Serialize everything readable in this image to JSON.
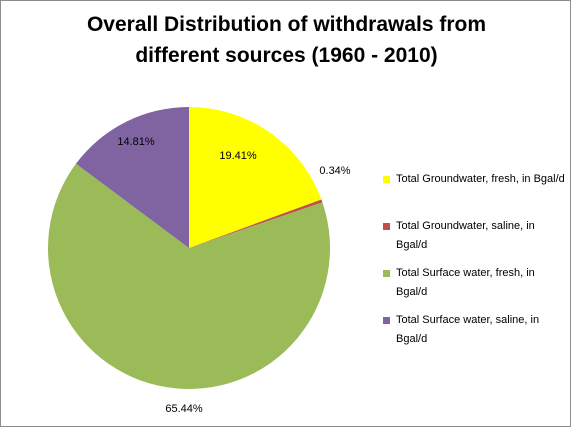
{
  "chart_data": {
    "type": "pie",
    "title": "Overall Distribution of withdrawals from different sources (1960 - 2010)",
    "title_lines": [
      "Overall Distribution of withdrawals from",
      "different sources (1960 - 2010)"
    ],
    "slices": [
      {
        "name": "Total Groundwater, fresh, in Bgal/d",
        "value": 19.41,
        "label": "19.41%",
        "color": "#ffff00"
      },
      {
        "name": "Total Groundwater, saline, in Bgal/d",
        "value": 0.34,
        "label": "0.34%",
        "color": "#c0504d"
      },
      {
        "name": "Total Surface water, fresh, in Bgal/d",
        "value": 65.44,
        "label": "65.44%",
        "color": "#9bbb59"
      },
      {
        "name": "Total Surface water, saline, in Bgal/d",
        "value": 14.81,
        "label": "14.81%",
        "color": "#8064a2"
      }
    ],
    "start_angle": "12 o'clock",
    "direction": "clockwise",
    "legend": "right"
  }
}
